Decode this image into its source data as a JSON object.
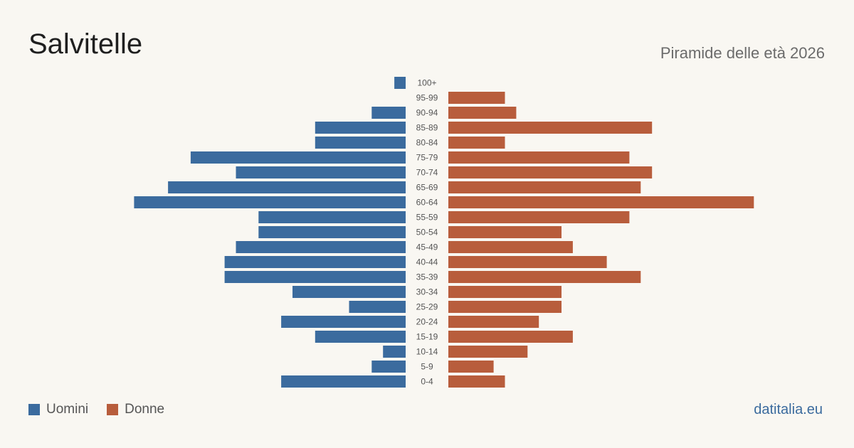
{
  "title": "Salvitelle",
  "subtitle": "Piramide delle età 2026",
  "source": "datitalia.eu",
  "colors": {
    "men": "#3b6b9e",
    "women": "#b85d3c"
  },
  "legend": {
    "men": "Uomini",
    "women": "Donne"
  },
  "chart_data": {
    "type": "bar",
    "orientation": "horizontal-pyramid",
    "categories": [
      "100+",
      "95-99",
      "90-94",
      "85-89",
      "80-84",
      "75-79",
      "70-74",
      "65-69",
      "60-64",
      "55-59",
      "50-54",
      "45-49",
      "40-44",
      "35-39",
      "30-34",
      "25-29",
      "20-24",
      "15-19",
      "10-14",
      "5-9",
      "0-4"
    ],
    "series": [
      {
        "name": "Uomini",
        "values": [
          1,
          0,
          3,
          8,
          8,
          19,
          15,
          21,
          24,
          13,
          13,
          15,
          16,
          16,
          10,
          5,
          11,
          8,
          2,
          3,
          11
        ]
      },
      {
        "name": "Donne",
        "values": [
          0,
          5,
          6,
          18,
          5,
          16,
          18,
          17,
          27,
          16,
          10,
          11,
          14,
          17,
          10,
          10,
          8,
          11,
          7,
          4,
          5
        ]
      }
    ]
  }
}
